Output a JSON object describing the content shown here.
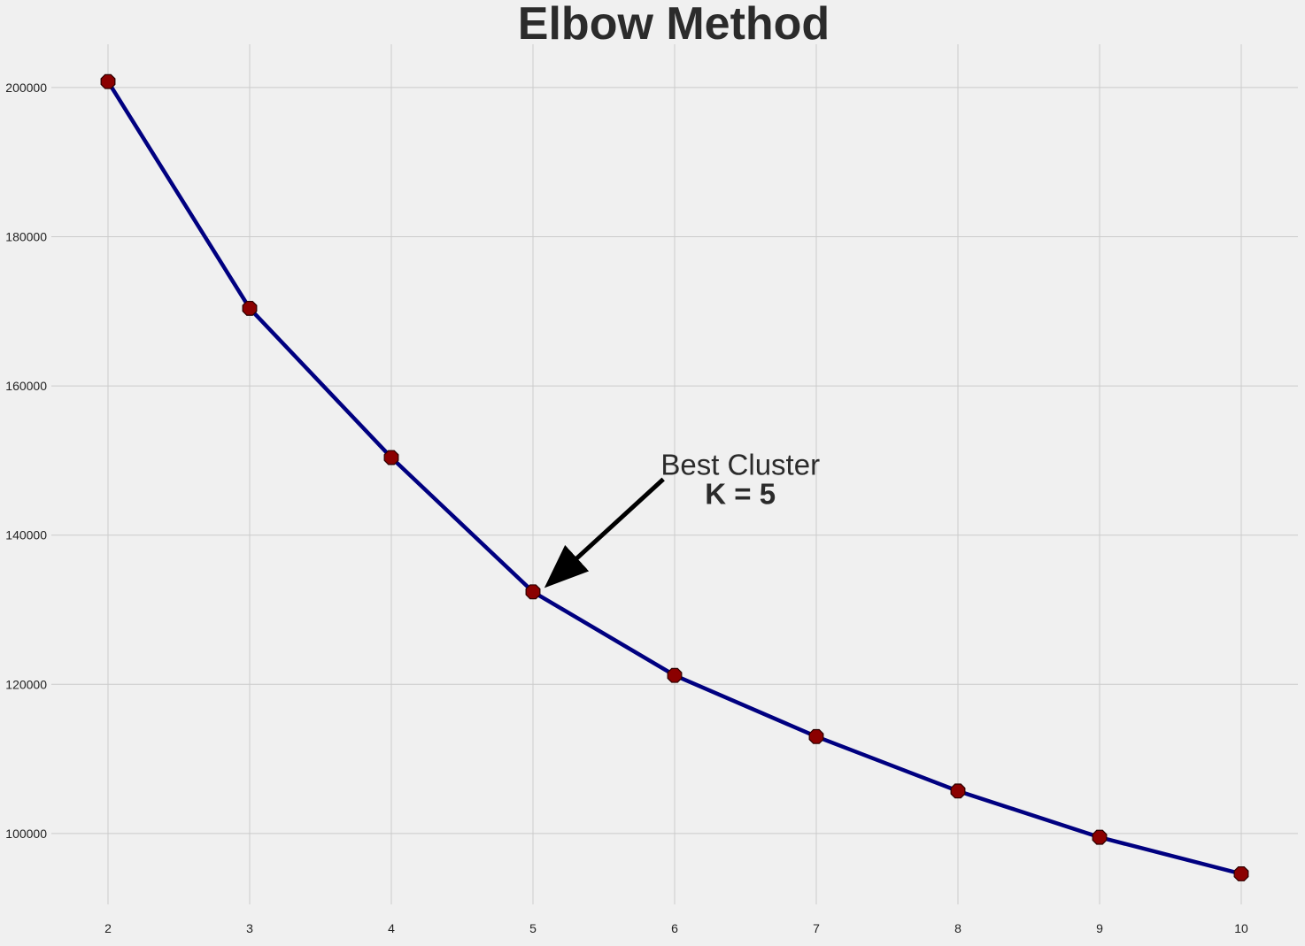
{
  "chart_data": {
    "type": "line",
    "title": "Elbow Method",
    "xlabel": "",
    "ylabel": "",
    "x": [
      2,
      3,
      4,
      5,
      6,
      7,
      8,
      9,
      10
    ],
    "series": [
      {
        "values": [
          200800,
          170400,
          150400,
          132400,
          121200,
          113000,
          105700,
          99500,
          94600
        ]
      }
    ],
    "xlim": [
      1.6,
      10.4
    ],
    "ylim": [
      90500,
      205800
    ],
    "x_ticks": [
      2,
      3,
      4,
      5,
      6,
      7,
      8,
      9,
      10
    ],
    "y_ticks": [
      100000,
      120000,
      140000,
      160000,
      180000,
      200000
    ],
    "grid": true,
    "colors": {
      "background": "#f0f0f0",
      "grid": "#cbcbcb",
      "line": "#000080",
      "marker": "#8b0000",
      "marker_edge": "#2b0000",
      "text": "#2b2b2b",
      "arrow": "#000000"
    },
    "annotation": {
      "line1": "Best Cluster",
      "line2": "K = 5",
      "target": {
        "x": 5.2,
        "y": 135000
      },
      "text_position": {
        "x": 5.97,
        "y": 147500
      }
    }
  }
}
